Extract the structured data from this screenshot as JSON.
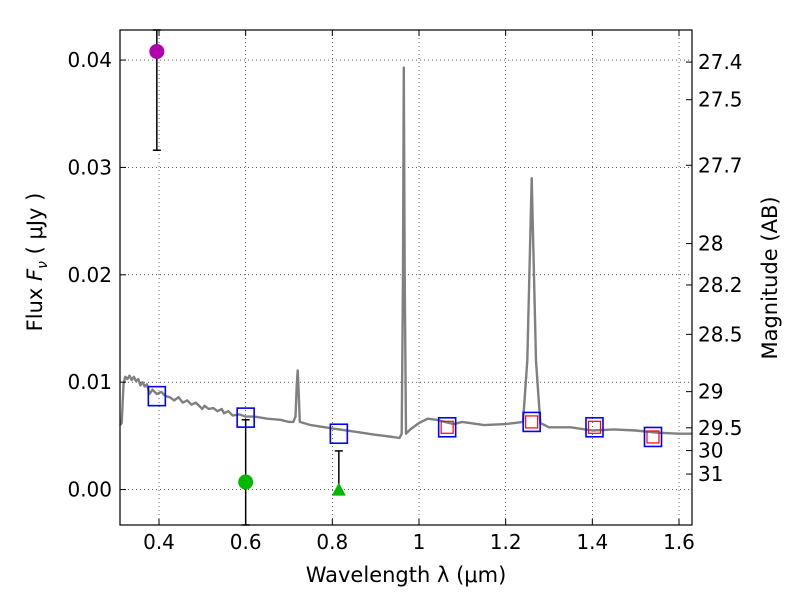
{
  "chart_data": {
    "type": "scatter",
    "title": "",
    "xlabel": "Wavelength  λ (μm)",
    "ylabel": "Flux  F_ν  ( μJy )",
    "ylabel_parts": {
      "prefix": "Flux  ",
      "var": "F",
      "sub": "ν",
      "suffix": "  ( μJy )"
    },
    "y2label": "Magnitude (AB)",
    "xlim": [
      0.31,
      1.63
    ],
    "ylim": [
      -0.0033,
      0.0428
    ],
    "grid": true,
    "grid_style": "dotted",
    "x_ticks": [
      {
        "value": 0.4,
        "label": "0.4"
      },
      {
        "value": 0.6,
        "label": "0.6"
      },
      {
        "value": 0.8,
        "label": "0.8"
      },
      {
        "value": 1.0,
        "label": "1"
      },
      {
        "value": 1.2,
        "label": "1.2"
      },
      {
        "value": 1.4,
        "label": "1.4"
      },
      {
        "value": 1.6,
        "label": "1.6"
      }
    ],
    "y_ticks": [
      {
        "value": 0.0,
        "label": "0.00"
      },
      {
        "value": 0.01,
        "label": "0.01"
      },
      {
        "value": 0.02,
        "label": "0.02"
      },
      {
        "value": 0.03,
        "label": "0.03"
      },
      {
        "value": 0.04,
        "label": "0.04"
      }
    ],
    "mag_ticks": [
      "27.4",
      "27.5",
      "27.7",
      "28",
      "28.2",
      "28.5",
      "29",
      "29.5",
      "30",
      "31"
    ],
    "mag_zeropoint": 23.9,
    "colors": {
      "model": "#808080",
      "observed_marker": "#0000ff",
      "model_marker": "#ff0000",
      "uv_point": "#b000b0",
      "green_point": "#00b800",
      "errorbar": "#000000"
    },
    "model_spectrum": {
      "name": "",
      "points": [
        [
          0.31,
          0.006
        ],
        [
          0.314,
          0.0062
        ],
        [
          0.318,
          0.0098
        ],
        [
          0.322,
          0.0105
        ],
        [
          0.327,
          0.0103
        ],
        [
          0.332,
          0.0106
        ],
        [
          0.337,
          0.0102
        ],
        [
          0.342,
          0.0105
        ],
        [
          0.347,
          0.0101
        ],
        [
          0.352,
          0.0103
        ],
        [
          0.357,
          0.0097
        ],
        [
          0.362,
          0.01
        ],
        [
          0.367,
          0.0096
        ],
        [
          0.372,
          0.0098
        ],
        [
          0.378,
          0.0089
        ],
        [
          0.385,
          0.0093
        ],
        [
          0.395,
          0.0089
        ],
        [
          0.405,
          0.0091
        ],
        [
          0.415,
          0.0087
        ],
        [
          0.425,
          0.0086
        ],
        [
          0.435,
          0.0083
        ],
        [
          0.445,
          0.0086
        ],
        [
          0.455,
          0.0081
        ],
        [
          0.465,
          0.0083
        ],
        [
          0.475,
          0.0079
        ],
        [
          0.485,
          0.0081
        ],
        [
          0.495,
          0.0077
        ],
        [
          0.5,
          0.0075
        ],
        [
          0.505,
          0.0078
        ],
        [
          0.515,
          0.0075
        ],
        [
          0.525,
          0.0076
        ],
        [
          0.535,
          0.0073
        ],
        [
          0.545,
          0.0075
        ],
        [
          0.55,
          0.0071
        ],
        [
          0.56,
          0.0073
        ],
        [
          0.57,
          0.0069
        ],
        [
          0.585,
          0.007
        ],
        [
          0.6,
          0.0068
        ],
        [
          0.62,
          0.0068
        ],
        [
          0.65,
          0.0066
        ],
        [
          0.68,
          0.0065
        ],
        [
          0.7,
          0.0063
        ],
        [
          0.71,
          0.0063
        ],
        [
          0.715,
          0.0068
        ],
        [
          0.718,
          0.0098
        ],
        [
          0.72,
          0.0111
        ],
        [
          0.722,
          0.0095
        ],
        [
          0.725,
          0.0063
        ],
        [
          0.75,
          0.006
        ],
        [
          0.8,
          0.0057
        ],
        [
          0.85,
          0.0054
        ],
        [
          0.9,
          0.0051
        ],
        [
          0.94,
          0.0049
        ],
        [
          0.955,
          0.0048
        ],
        [
          0.96,
          0.0052
        ],
        [
          0.963,
          0.02
        ],
        [
          0.965,
          0.0393
        ],
        [
          0.967,
          0.02
        ],
        [
          0.97,
          0.0052
        ],
        [
          0.98,
          0.0056
        ],
        [
          1.0,
          0.0062
        ],
        [
          1.02,
          0.0066
        ],
        [
          1.04,
          0.0065
        ],
        [
          1.06,
          0.0063
        ],
        [
          1.08,
          0.0061
        ],
        [
          1.1,
          0.0063
        ],
        [
          1.15,
          0.006
        ],
        [
          1.2,
          0.0061
        ],
        [
          1.24,
          0.0063
        ],
        [
          1.25,
          0.012
        ],
        [
          1.26,
          0.029
        ],
        [
          1.27,
          0.012
        ],
        [
          1.28,
          0.0062
        ],
        [
          1.3,
          0.0058
        ],
        [
          1.35,
          0.0058
        ],
        [
          1.4,
          0.0055
        ],
        [
          1.45,
          0.0056
        ],
        [
          1.5,
          0.0055
        ],
        [
          1.55,
          0.0053
        ],
        [
          1.6,
          0.0052
        ],
        [
          1.63,
          0.0052
        ]
      ]
    },
    "observed_points": [
      {
        "x": 0.395,
        "y": 0.0087
      },
      {
        "x": 0.6,
        "y": 0.0067
      },
      {
        "x": 0.815,
        "y": 0.0052
      },
      {
        "x": 1.065,
        "y": 0.0058
      },
      {
        "x": 1.26,
        "y": 0.0063
      },
      {
        "x": 1.405,
        "y": 0.0058
      },
      {
        "x": 1.54,
        "y": 0.0049
      }
    ],
    "model_points": [
      {
        "x": 1.065,
        "y": 0.0058
      },
      {
        "x": 1.26,
        "y": 0.0063
      },
      {
        "x": 1.405,
        "y": 0.0058
      },
      {
        "x": 1.54,
        "y": 0.0049
      }
    ],
    "uv_point": {
      "x": 0.395,
      "y": 0.0408,
      "err_low": 0.0316,
      "err_high": 0.0428
    },
    "green_circle": {
      "x": 0.6,
      "y": 0.0007,
      "err_low": -0.0033,
      "err_high": 0.0065
    },
    "green_triangle": {
      "x": 0.815,
      "y": -0.0001,
      "err_low": -0.0001,
      "err_high": 0.0036
    }
  }
}
